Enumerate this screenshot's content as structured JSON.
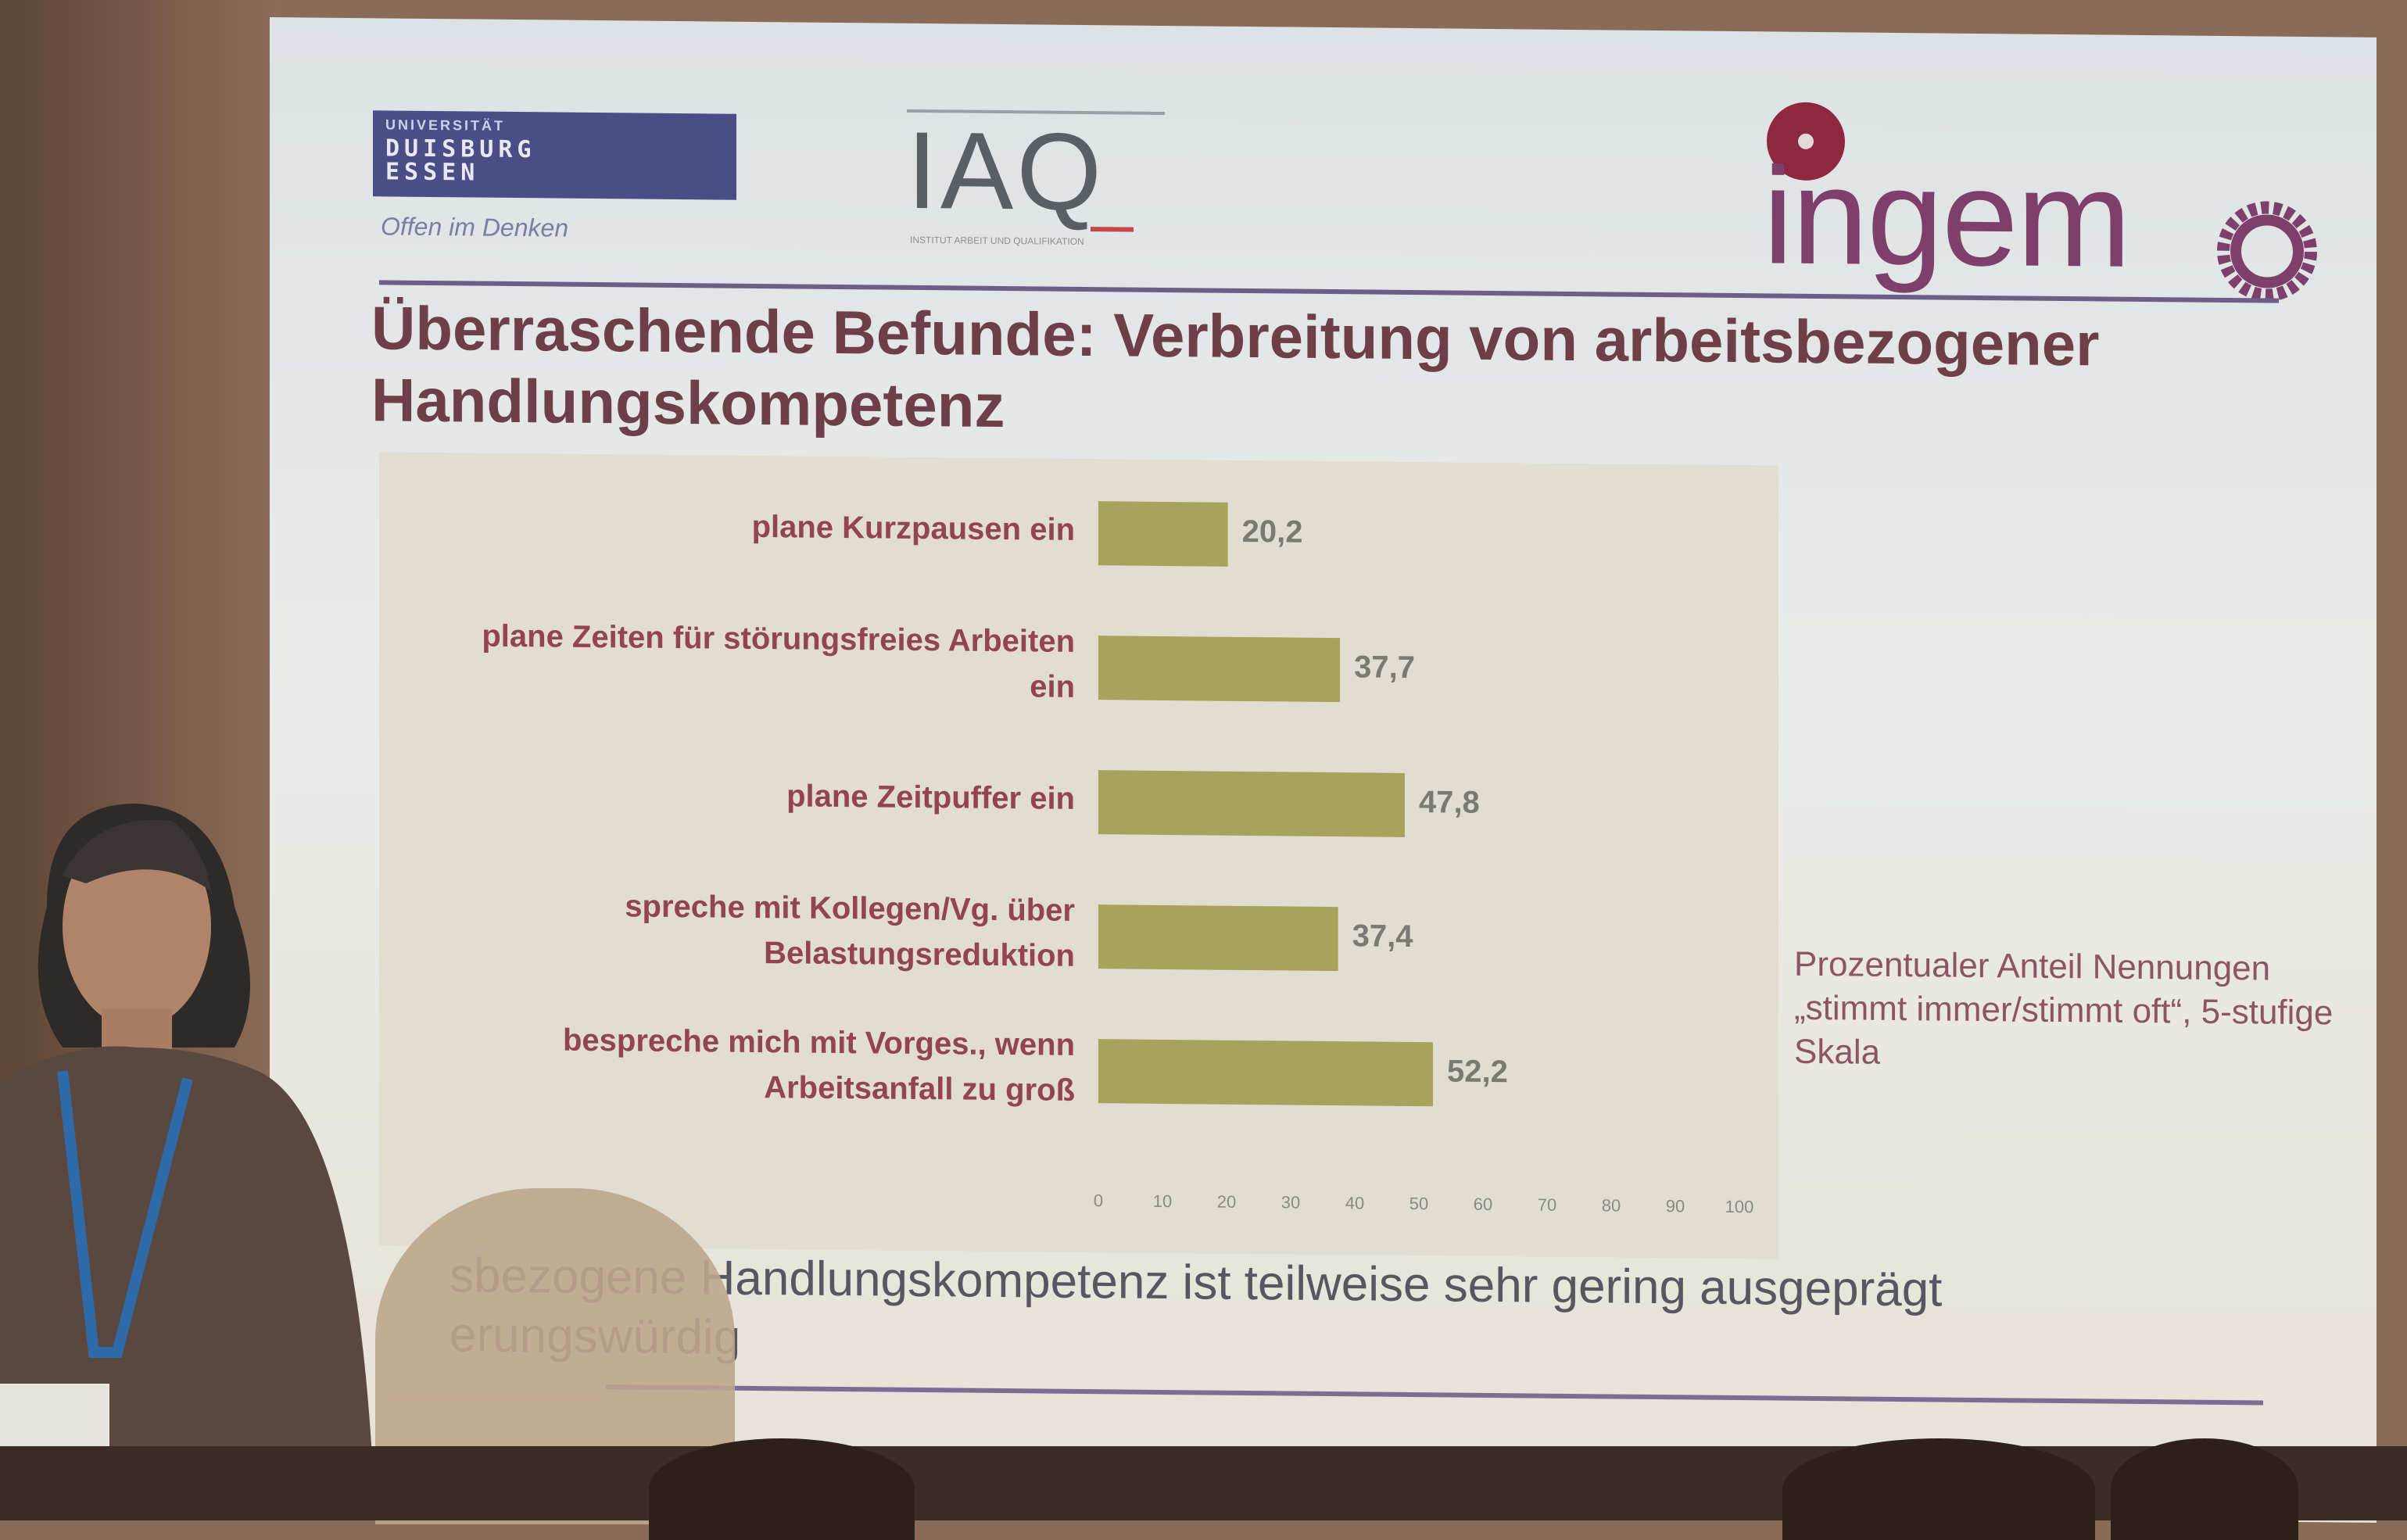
{
  "logos": {
    "ude_small": "UNIVERSITÄT",
    "ude_big": "DUISBURG\nESSEN",
    "ude_tagline": "Offen im Denken",
    "iaq": "IAQ",
    "iaq_sub": "INSTITUT ARBEIT UND QUALIFIKATION",
    "ingemo": "ingem"
  },
  "slide": {
    "title": "Überraschende Befunde: Verbreitung von arbeitsbezogener Handlungskompetenz",
    "note": "Prozentualer Anteil Nennungen „stimmt immer/stimmt oft“, 5-stufige Skala",
    "bottom_line1": "sbezogene Handlungskompetenz ist teilweise sehr gering ausgeprägt",
    "bottom_line2": "erungswürdig"
  },
  "colors": {
    "bar": "#a7a35c",
    "title": "#6e3f48",
    "labels": "#92454f",
    "rule": "#6c5e87"
  },
  "chart_data": {
    "type": "bar",
    "orientation": "horizontal",
    "categories": [
      "plane Kurzpausen ein",
      "plane Zeiten für störungsfreies Arbeiten ein",
      "plane Zeitpuffer ein",
      "spreche mit Kollegen/Vg. über Belastungsreduktion",
      "bespreche mich mit Vorges., wenn Arbeitsanfall zu groß"
    ],
    "category_lines": [
      [
        "plane Kurzpausen ein"
      ],
      [
        "plane Zeiten für störungsfreies Arbeiten",
        "ein"
      ],
      [
        "plane Zeitpuffer ein"
      ],
      [
        "spreche mit Kollegen/Vg. über",
        "Belastungsreduktion"
      ],
      [
        "bespreche mich mit Vorges., wenn",
        "Arbeitsanfall zu groß"
      ]
    ],
    "values": [
      20.2,
      37.7,
      47.8,
      37.4,
      52.2
    ],
    "value_labels": [
      "20,2",
      "37,7",
      "47,8",
      "37,4",
      "52,2"
    ],
    "xlim": [
      0,
      100
    ],
    "xticks": [
      "0",
      "10",
      "20",
      "30",
      "40",
      "50",
      "60",
      "70",
      "80",
      "90",
      "100"
    ],
    "grid": false,
    "legend": "none"
  }
}
